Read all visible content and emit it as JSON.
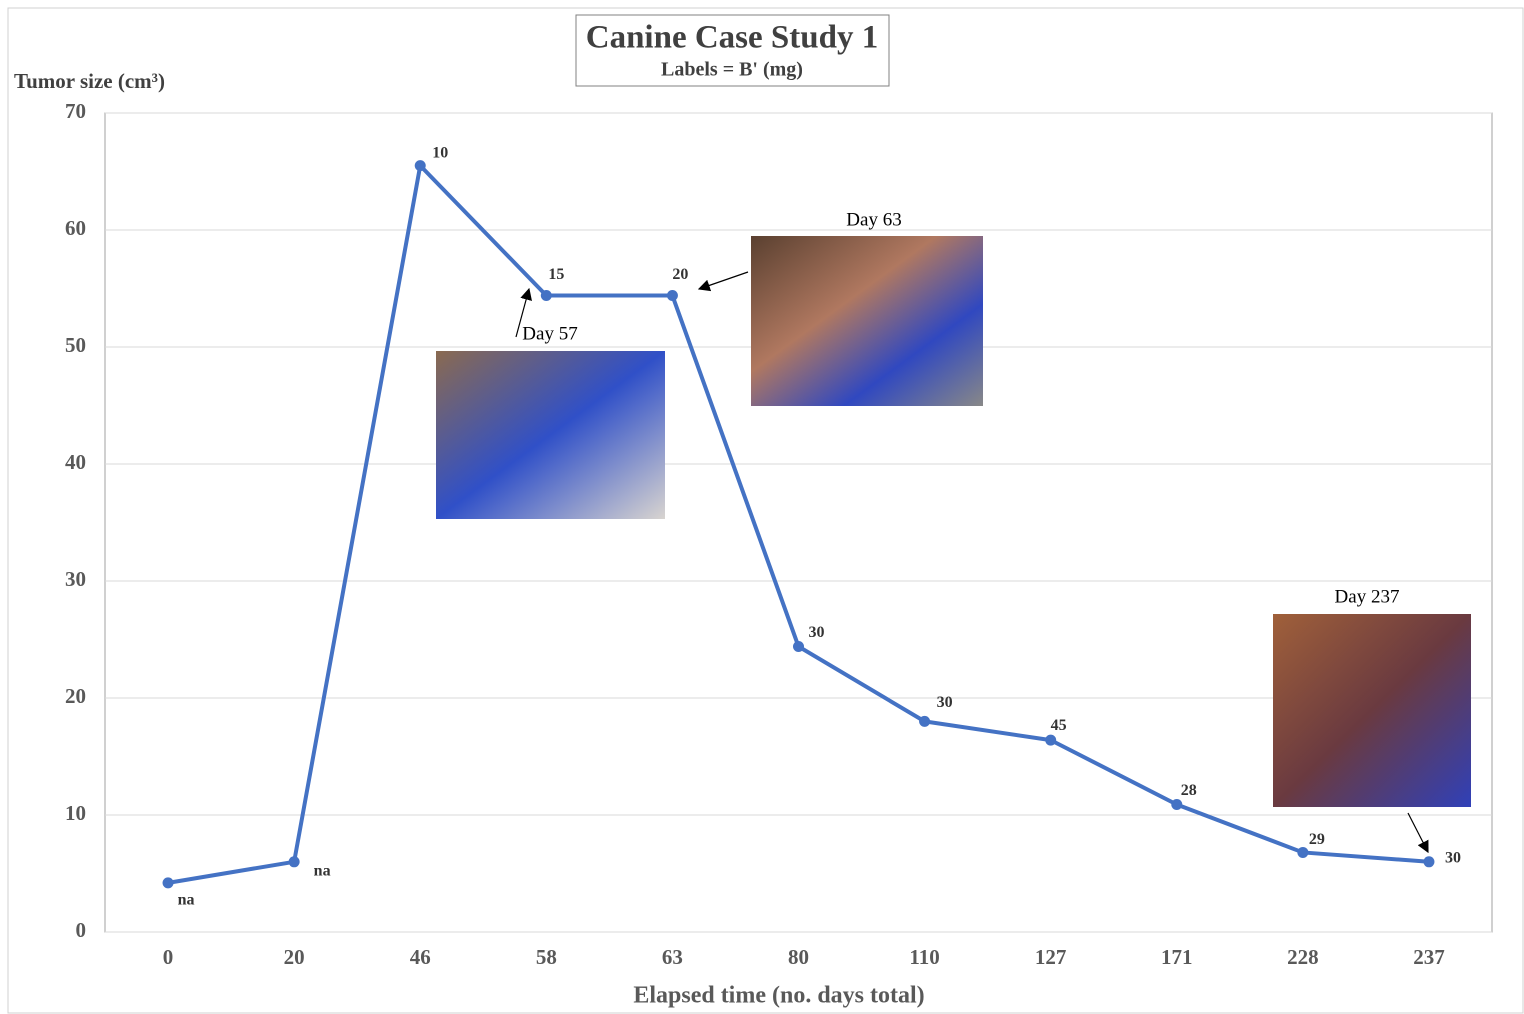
{
  "chart_data": {
    "type": "line",
    "title": "Canine Case Study 1",
    "subtitle": "Labels = B' (mg)",
    "y_label": "Tumor size (cm³)",
    "x_label": "Elapsed time (no. days total)",
    "categories": [
      "0",
      "20",
      "46",
      "58",
      "63",
      "80",
      "110",
      "127",
      "171",
      "228",
      "237"
    ],
    "series": [
      {
        "color": "#4472c4",
        "values": [
          4.2,
          6,
          65.5,
          54.4,
          54.4,
          24.4,
          18,
          16.4,
          10.9,
          6.8,
          6
        ],
        "point_labels": [
          "na",
          "na",
          "10",
          "15",
          "20",
          "30",
          "30",
          "45",
          "28",
          "29",
          "30"
        ]
      }
    ],
    "ylim": [
      0,
      70
    ],
    "yticks": [
      0,
      10,
      20,
      30,
      40,
      50,
      60,
      70
    ],
    "grid": true,
    "annotations": [
      "Day 57",
      "Day 63",
      "Day 237"
    ]
  }
}
